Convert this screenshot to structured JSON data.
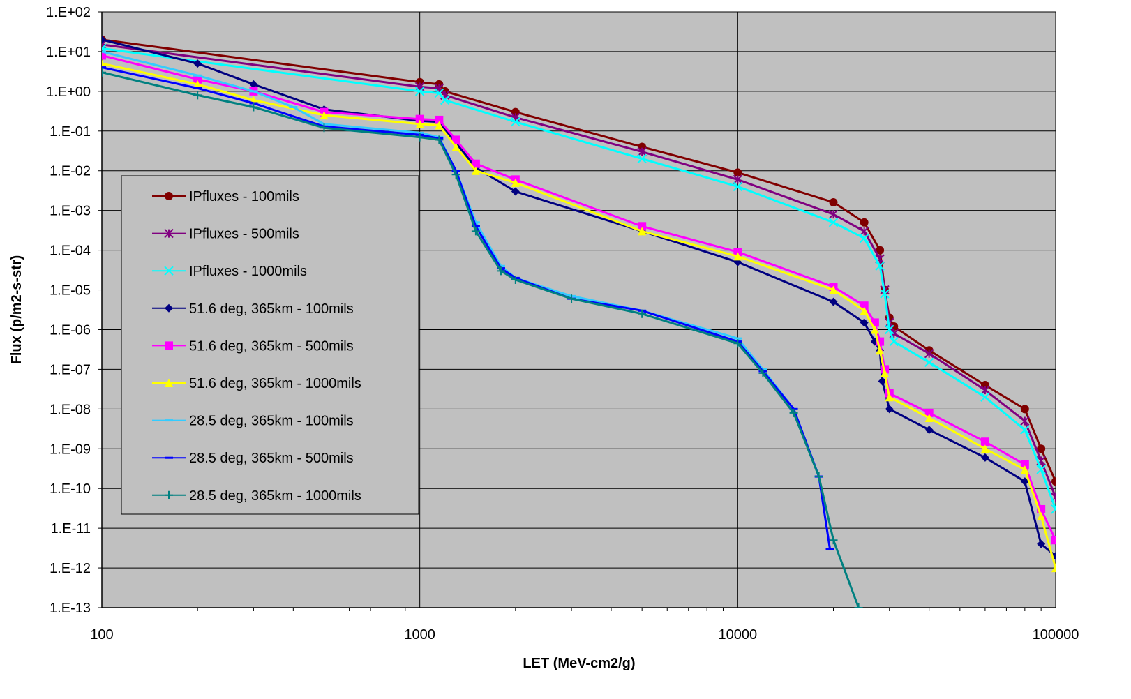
{
  "chart_data": {
    "type": "line",
    "x_label": "LET (MeV-cm2/g)",
    "y_label": "Flux (p/m2-s-str)",
    "xlog": true,
    "ylog": true,
    "grid": true,
    "plot_background": "#c0c0c0",
    "xlim": [
      100,
      100000
    ],
    "xticks": [
      100,
      1000,
      10000,
      100000
    ],
    "ylim": [
      1e-13,
      100
    ],
    "yticks": [
      {
        "value": 100,
        "label": "1.E+02"
      },
      {
        "value": 10,
        "label": "1.E+01"
      },
      {
        "value": 1,
        "label": "1.E+00"
      },
      {
        "value": 0.1,
        "label": "1.E-01"
      },
      {
        "value": 0.01,
        "label": "1.E-02"
      },
      {
        "value": 0.001,
        "label": "1.E-03"
      },
      {
        "value": 0.0001,
        "label": "1.E-04"
      },
      {
        "value": 1e-05,
        "label": "1.E-05"
      },
      {
        "value": 1e-06,
        "label": "1.E-06"
      },
      {
        "value": 1e-07,
        "label": "1.E-07"
      },
      {
        "value": 1e-08,
        "label": "1.E-08"
      },
      {
        "value": 1e-09,
        "label": "1.E-09"
      },
      {
        "value": 1e-10,
        "label": "1.E-10"
      },
      {
        "value": 1e-11,
        "label": "1.E-11"
      },
      {
        "value": 1e-12,
        "label": "1.E-12"
      },
      {
        "value": 1e-13,
        "label": "1.E-13"
      }
    ],
    "series": [
      {
        "name": "IPfluxes - 100mils",
        "color": "#800000",
        "marker": "circle",
        "x": [
          100,
          1000,
          1150,
          1200,
          2000,
          5000,
          10000,
          20000,
          25000,
          28000,
          29000,
          30000,
          31000,
          40000,
          60000,
          80000,
          90000,
          100000
        ],
        "values": [
          20,
          1.7,
          1.5,
          1,
          0.3,
          0.04,
          0.009,
          0.0016,
          0.0005,
          0.0001,
          1e-05,
          2e-06,
          1.2e-06,
          3e-07,
          4e-08,
          1e-08,
          1e-09,
          1.5e-10
        ]
      },
      {
        "name": "IPfluxes - 500mils",
        "color": "#800080",
        "marker": "asterisk",
        "x": [
          100,
          1000,
          1150,
          1200,
          2000,
          5000,
          10000,
          20000,
          25000,
          28000,
          29000,
          30000,
          31000,
          40000,
          60000,
          80000,
          90000,
          100000
        ],
        "values": [
          15,
          1.3,
          1.2,
          0.8,
          0.22,
          0.03,
          0.006,
          0.0008,
          0.0003,
          6e-05,
          1e-05,
          1.5e-06,
          8e-07,
          2.5e-07,
          3e-08,
          5e-09,
          5e-10,
          6e-11
        ]
      },
      {
        "name": "IPfluxes - 1000mils",
        "color": "#00ffff",
        "marker": "x",
        "x": [
          100,
          1000,
          1150,
          1200,
          2000,
          5000,
          10000,
          20000,
          25000,
          28000,
          29000,
          30000,
          31000,
          40000,
          60000,
          80000,
          90000,
          100000
        ],
        "values": [
          12,
          1,
          0.9,
          0.6,
          0.17,
          0.02,
          0.004,
          0.0005,
          0.0002,
          4e-05,
          8e-06,
          1e-06,
          5e-07,
          1.5e-07,
          2e-08,
          3e-09,
          3e-10,
          3e-11
        ]
      },
      {
        "name": "51.6 deg, 365km - 100mils",
        "color": "#000080",
        "marker": "diamond",
        "x": [
          100,
          200,
          300,
          500,
          1000,
          1150,
          1300,
          1500,
          2000,
          5000,
          10000,
          20000,
          25000,
          27000,
          28000,
          28500,
          30000,
          40000,
          60000,
          80000,
          90000,
          100000
        ],
        "values": [
          20,
          5,
          1.5,
          0.35,
          0.18,
          0.17,
          0.05,
          0.012,
          0.003,
          0.0003,
          5e-05,
          5e-06,
          1.5e-06,
          5e-07,
          3e-07,
          5e-08,
          1e-08,
          3e-09,
          6e-10,
          1.5e-10,
          4e-12,
          2e-12
        ]
      },
      {
        "name": "51.6 deg, 365km - 500mils",
        "color": "#ff00ff",
        "marker": "square",
        "x": [
          100,
          200,
          300,
          500,
          1000,
          1150,
          1300,
          1500,
          2000,
          5000,
          10000,
          20000,
          25000,
          27000,
          28000,
          29000,
          30000,
          40000,
          60000,
          80000,
          90000,
          100000
        ],
        "values": [
          8,
          2,
          1,
          0.3,
          0.2,
          0.19,
          0.06,
          0.015,
          0.006,
          0.0004,
          9e-05,
          1.2e-05,
          4e-06,
          1.5e-06,
          5e-07,
          1e-07,
          2.5e-08,
          8e-09,
          1.5e-09,
          4e-10,
          3e-11,
          5e-12
        ]
      },
      {
        "name": "51.6 deg, 365km - 1000mils",
        "color": "#ffff00",
        "marker": "triangle",
        "x": [
          100,
          200,
          300,
          500,
          1000,
          1150,
          1300,
          1500,
          2000,
          5000,
          10000,
          20000,
          25000,
          27000,
          28000,
          29000,
          30000,
          40000,
          60000,
          80000,
          90000,
          100000
        ],
        "values": [
          5,
          1.5,
          0.6,
          0.25,
          0.15,
          0.14,
          0.04,
          0.01,
          0.005,
          0.0003,
          7e-05,
          1e-05,
          3e-06,
          1e-06,
          3e-07,
          8e-08,
          2e-08,
          6e-09,
          1e-09,
          3e-10,
          2e-11,
          1e-12
        ]
      },
      {
        "name": "28.5 deg, 365km - 100mils",
        "color": "#33ccff",
        "marker": "dash",
        "x": [
          100,
          200,
          300,
          400,
          500,
          1000,
          1150,
          1300,
          1500,
          1800,
          2000,
          3000,
          5000,
          10000,
          12000,
          15000,
          18000,
          19500
        ],
        "values": [
          10,
          2.5,
          1,
          0.4,
          0.15,
          0.09,
          0.07,
          0.01,
          0.0005,
          4e-05,
          2e-05,
          7e-06,
          3e-06,
          6e-07,
          1e-07,
          1e-08,
          2e-10,
          3e-12
        ]
      },
      {
        "name": "28.5 deg, 365km - 500mils",
        "color": "#0000ff",
        "marker": "dash",
        "x": [
          100,
          200,
          300,
          500,
          1000,
          1150,
          1300,
          1500,
          1800,
          2000,
          3000,
          5000,
          10000,
          12000,
          15000,
          18000,
          19500
        ],
        "values": [
          4,
          1.2,
          0.5,
          0.13,
          0.08,
          0.065,
          0.01,
          0.0004,
          3.5e-05,
          2e-05,
          6e-06,
          3e-06,
          5e-07,
          9e-08,
          1e-08,
          2e-10,
          3e-12
        ]
      },
      {
        "name": "28.5 deg, 365km - 1000mils",
        "color": "#008080",
        "marker": "plus",
        "x": [
          100,
          200,
          300,
          500,
          1000,
          1150,
          1300,
          1500,
          1800,
          2000,
          3000,
          5000,
          10000,
          12000,
          15000,
          18000,
          20000,
          24000
        ],
        "values": [
          3,
          0.8,
          0.4,
          0.12,
          0.07,
          0.06,
          0.008,
          0.0003,
          3e-05,
          1.8e-05,
          6e-06,
          2.5e-06,
          4.5e-07,
          8e-08,
          8e-09,
          2e-10,
          5e-12,
          1e-13
        ]
      }
    ]
  }
}
